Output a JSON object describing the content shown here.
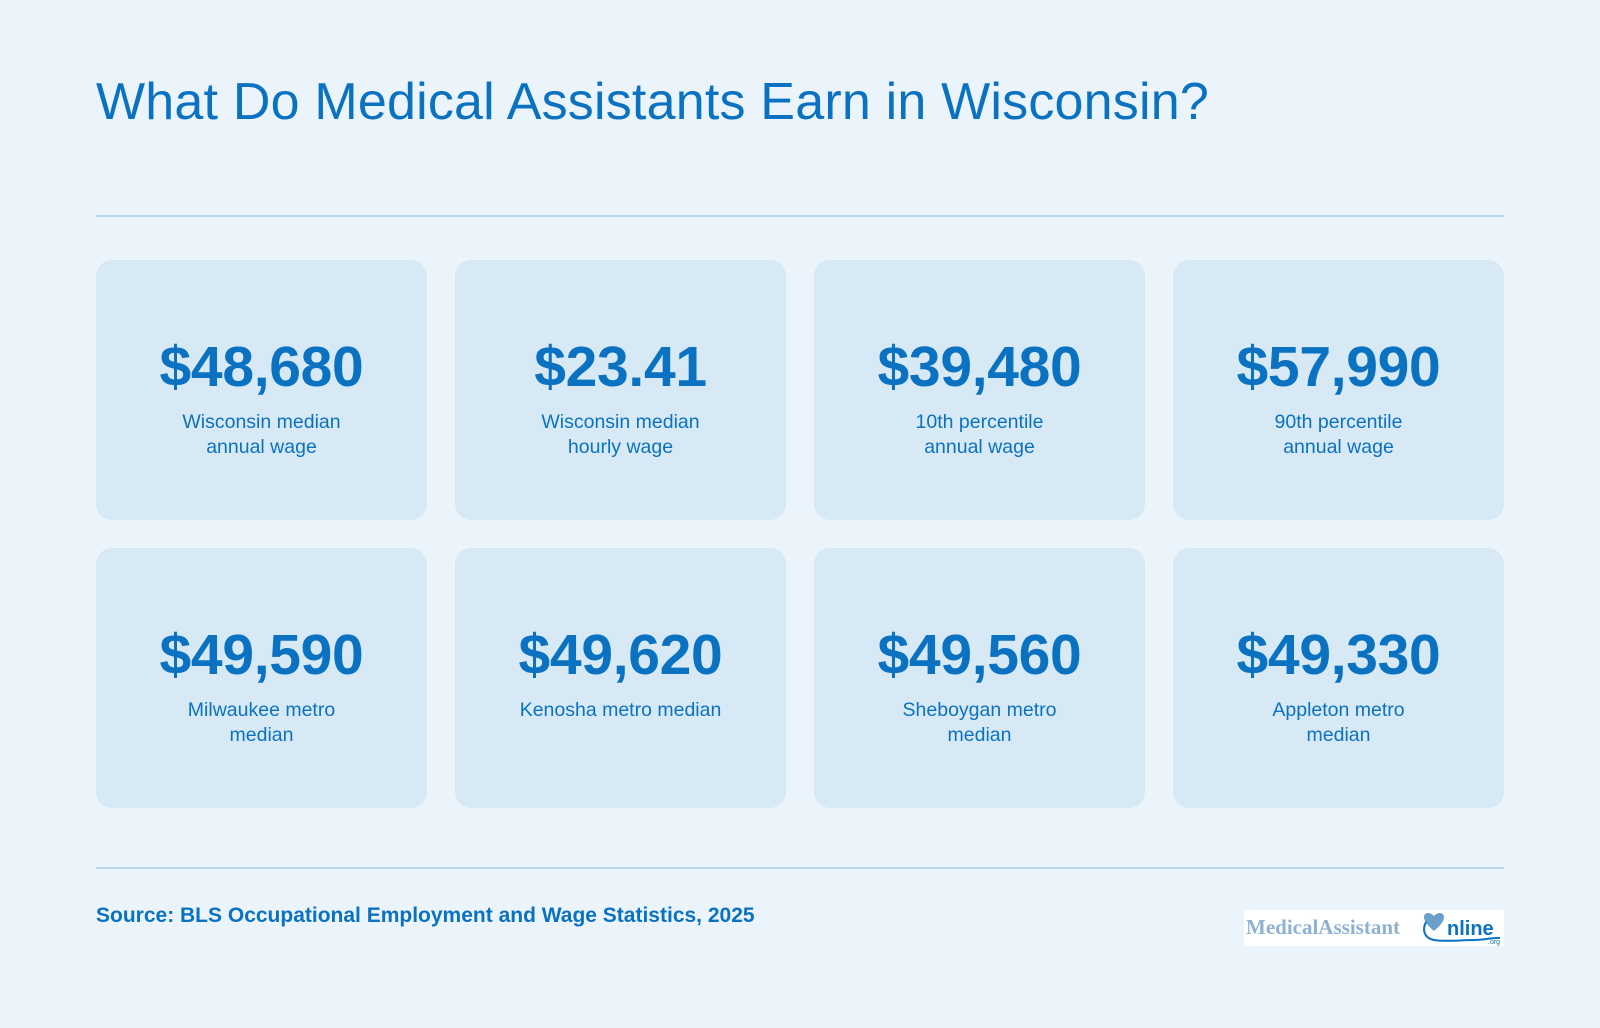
{
  "title": "What Do Medical Assistants Earn in Wisconsin?",
  "stats": [
    {
      "value": "$48,680",
      "label": "Wisconsin median annual wage"
    },
    {
      "value": "$23.41",
      "label": "Wisconsin median hourly wage"
    },
    {
      "value": "$39,480",
      "label": "10th percentile annual wage"
    },
    {
      "value": "$57,990",
      "label": "90th percentile annual wage"
    },
    {
      "value": "$49,590",
      "label": "Milwaukee metro median"
    },
    {
      "value": "$49,620",
      "label": "Kenosha metro median"
    },
    {
      "value": "$49,560",
      "label": "Sheboygan metro median"
    },
    {
      "value": "$49,330",
      "label": "Appleton metro median"
    }
  ],
  "source": "Source: BLS Occupational Employment and Wage Statistics, 2025",
  "logo": {
    "text_part1": "MedicalAssistant",
    "text_part2": "nline",
    "suffix": ".org"
  },
  "colors": {
    "background": "#ebf4fb",
    "card": "#d8e9f6",
    "accent": "#0a72c0",
    "rule": "#bad6ea"
  }
}
